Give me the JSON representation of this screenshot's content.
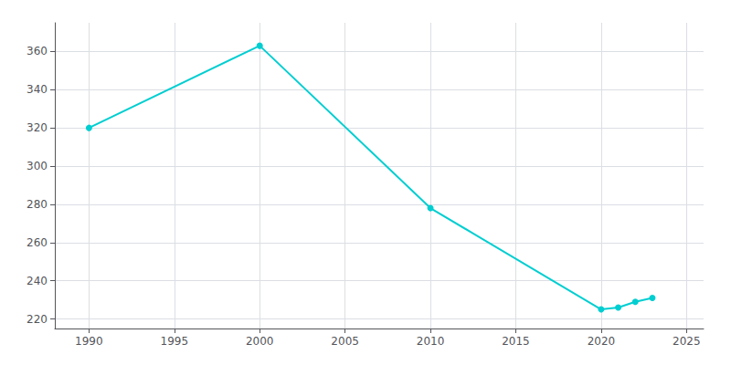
{
  "chart_data": {
    "type": "line",
    "x": [
      1990,
      2000,
      2010,
      2020,
      2021,
      2022,
      2023
    ],
    "values": [
      320,
      363,
      278,
      225,
      226,
      229,
      231
    ],
    "color": "#00CED1",
    "marker": "circle",
    "xlim": [
      1988,
      2026
    ],
    "ylim": [
      215,
      375
    ],
    "xticks": [
      1990,
      1995,
      2000,
      2005,
      2010,
      2015,
      2020,
      2025
    ],
    "yticks": [
      220,
      240,
      260,
      280,
      300,
      320,
      340,
      360
    ],
    "grid": true
  }
}
